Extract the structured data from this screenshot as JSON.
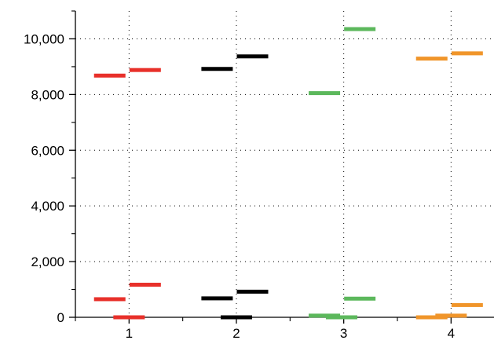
{
  "chart_data": {
    "type": "scatter",
    "marker": "horizontal-dash",
    "x_ticks": [
      "1",
      "2",
      "3",
      "4"
    ],
    "y_ticks": [
      "0",
      "2,000",
      "4,000",
      "6,000",
      "8,000",
      "10,000"
    ],
    "y_tick_values": [
      0,
      2000,
      4000,
      6000,
      8000,
      10000
    ],
    "ylim": [
      0,
      11000
    ],
    "xlim": [
      0.5,
      4.4
    ],
    "grid": true,
    "series": [
      {
        "color": "#e8302a",
        "points": [
          {
            "x": 0.82,
            "y": 8680
          },
          {
            "x": 1.15,
            "y": 8880
          },
          {
            "x": 0.82,
            "y": 650
          },
          {
            "x": 1.15,
            "y": 1170
          },
          {
            "x": 1.0,
            "y": 0
          }
        ]
      },
      {
        "color": "#000000",
        "points": [
          {
            "x": 1.82,
            "y": 8920
          },
          {
            "x": 2.15,
            "y": 9370
          },
          {
            "x": 1.82,
            "y": 680
          },
          {
            "x": 2.15,
            "y": 920
          },
          {
            "x": 2.0,
            "y": 0
          }
        ]
      },
      {
        "color": "#5cb85c",
        "points": [
          {
            "x": 2.82,
            "y": 8050
          },
          {
            "x": 3.15,
            "y": 10350
          },
          {
            "x": 2.82,
            "y": 60
          },
          {
            "x": 3.15,
            "y": 670
          },
          {
            "x": 2.98,
            "y": 0
          }
        ]
      },
      {
        "color": "#f0952a",
        "points": [
          {
            "x": 3.82,
            "y": 9290
          },
          {
            "x": 4.15,
            "y": 9480
          },
          {
            "x": 3.82,
            "y": 0
          },
          {
            "x": 4.0,
            "y": 60
          },
          {
            "x": 4.15,
            "y": 440
          }
        ]
      }
    ]
  }
}
